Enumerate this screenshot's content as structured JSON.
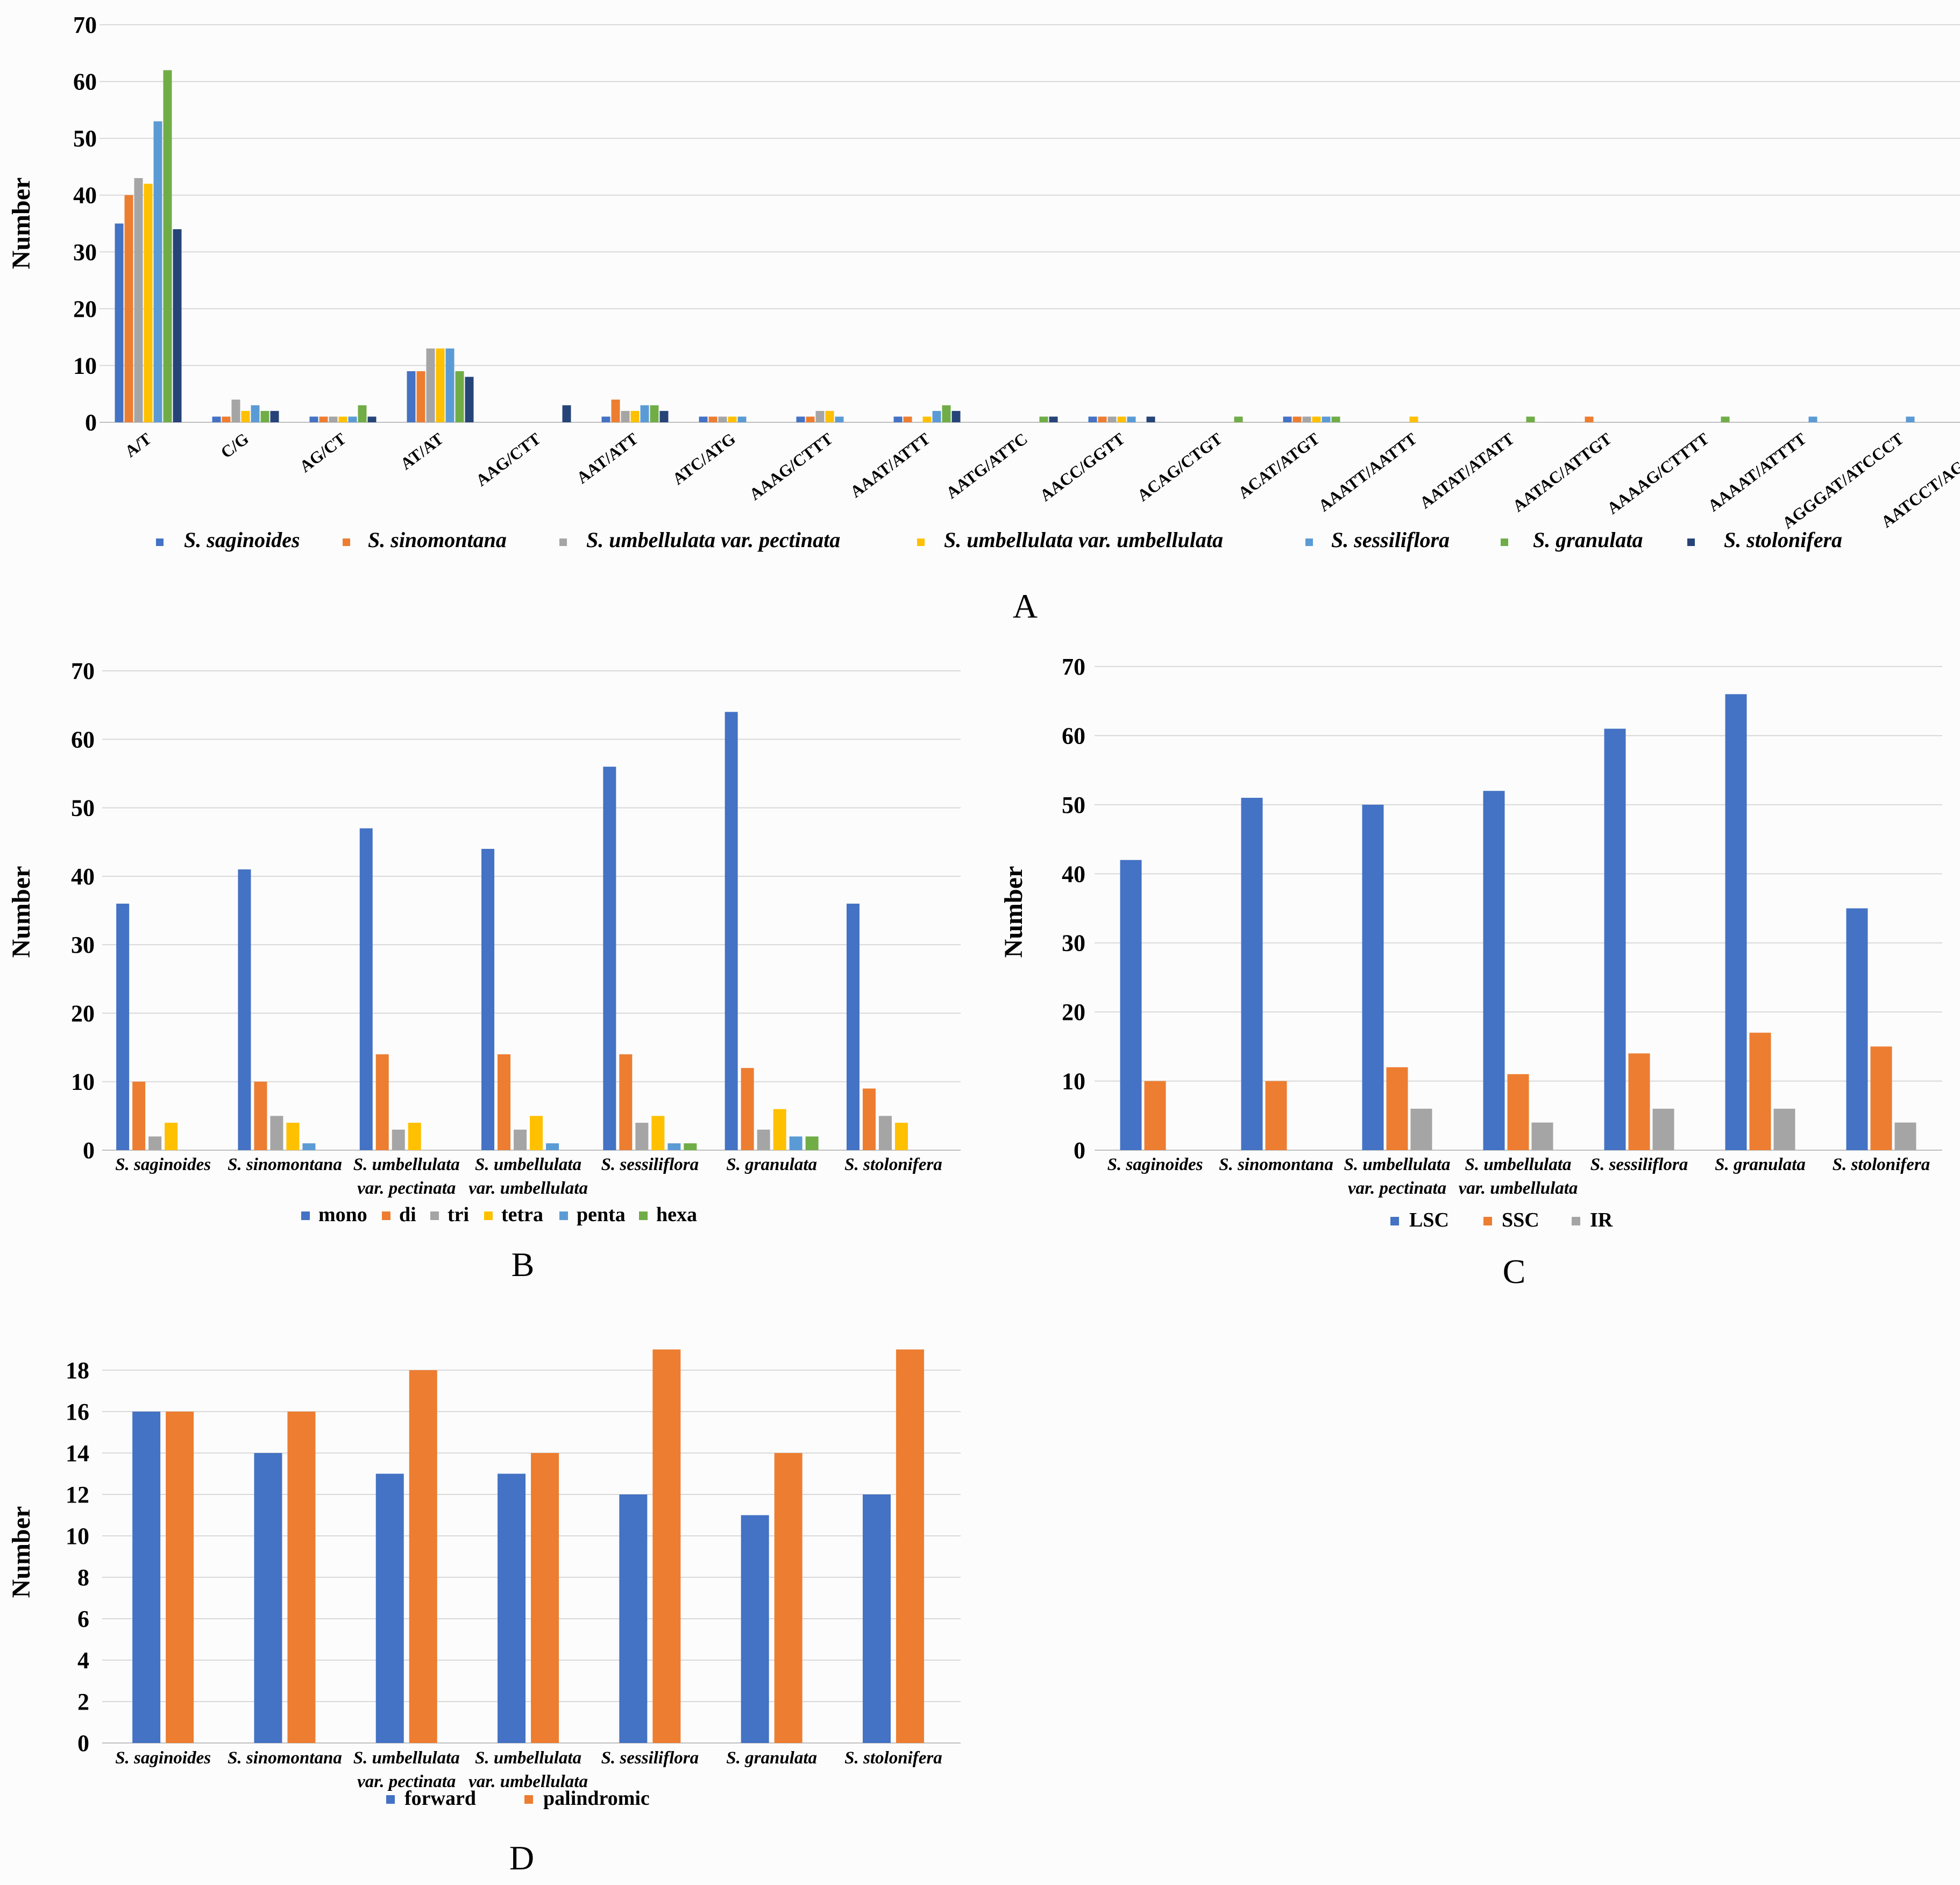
{
  "chart_data": [
    {
      "id": "A",
      "type": "bar",
      "panel_label": "A",
      "ylabel": "Number",
      "ylim": [
        0,
        70
      ],
      "yticks": [
        "0",
        "10",
        "20",
        "30",
        "40",
        "50",
        "60",
        "70"
      ],
      "legend_position": "bottom",
      "categories": [
        "A/T",
        "C/G",
        "AG/CT",
        "AT/AT",
        "AAG/CTT",
        "AAT/ATT",
        "ATC/ATG",
        "AAAG/CTTT",
        "AAAT/ATTT",
        "AATG/ATTC",
        "AACC/GGTT",
        "ACAG/CTGT",
        "ACAT/ATGT",
        "AAATT/AATTT",
        "AATAT/ATATT",
        "AATAC/ATTGT",
        "AAAAG/CTTTT",
        "AAAAT/ATTTT",
        "AGGGAT/ATCCCT",
        "AATCCT/AGGATT"
      ],
      "series": [
        {
          "name": "S. saginoides",
          "color": "#4472c4",
          "values": [
            35,
            1,
            1,
            9,
            0,
            1,
            1,
            1,
            1,
            0,
            1,
            0,
            1,
            0,
            0,
            0,
            0,
            0,
            0,
            0
          ]
        },
        {
          "name": "S. sinomontana",
          "color": "#ed7d31",
          "values": [
            40,
            1,
            1,
            9,
            0,
            4,
            1,
            1,
            1,
            0,
            1,
            0,
            1,
            0,
            0,
            1,
            0,
            0,
            0,
            0
          ]
        },
        {
          "name": "S. umbellulata var. pectinata",
          "color": "#a5a5a5",
          "values": [
            43,
            4,
            1,
            13,
            0,
            2,
            1,
            2,
            0,
            0,
            1,
            0,
            1,
            0,
            0,
            0,
            0,
            0,
            0,
            0
          ]
        },
        {
          "name": "S. umbellulata var. umbellulata",
          "color": "#ffc000",
          "values": [
            42,
            2,
            1,
            13,
            0,
            2,
            1,
            2,
            1,
            0,
            1,
            0,
            1,
            1,
            0,
            0,
            0,
            0,
            0,
            0
          ]
        },
        {
          "name": "S. sessiliflora",
          "color": "#5b9bd5",
          "values": [
            53,
            3,
            1,
            13,
            0,
            3,
            1,
            1,
            2,
            0,
            1,
            0,
            1,
            0,
            0,
            0,
            0,
            1,
            1,
            0
          ]
        },
        {
          "name": "S. granulata",
          "color": "#70ad47",
          "values": [
            62,
            2,
            3,
            9,
            0,
            3,
            0,
            0,
            3,
            1,
            0,
            1,
            1,
            0,
            1,
            0,
            1,
            0,
            0,
            2
          ]
        },
        {
          "name": "S. stolonifera",
          "color": "#264478",
          "values": [
            34,
            2,
            1,
            8,
            3,
            2,
            0,
            0,
            2,
            1,
            1,
            0,
            0,
            0,
            0,
            0,
            0,
            0,
            0,
            0
          ]
        }
      ]
    },
    {
      "id": "B",
      "type": "bar",
      "panel_label": "B",
      "ylabel": "Number",
      "ylim": [
        0,
        70
      ],
      "yticks": [
        "0",
        "10",
        "20",
        "30",
        "40",
        "50",
        "60",
        "70"
      ],
      "legend_position": "bottom",
      "categories": [
        [
          "S. saginoides"
        ],
        [
          "S. sinomontana"
        ],
        [
          "S. umbellulata",
          "var. pectinata"
        ],
        [
          "S. umbellulata",
          "var. umbellulata"
        ],
        [
          "S. sessiliflora"
        ],
        [
          "S. granulata"
        ],
        [
          "S. stolonifera"
        ]
      ],
      "series": [
        {
          "name": "mono",
          "color": "#4472c4",
          "values": [
            36,
            41,
            47,
            44,
            56,
            64,
            36
          ]
        },
        {
          "name": "di",
          "color": "#ed7d31",
          "values": [
            10,
            10,
            14,
            14,
            14,
            12,
            9
          ]
        },
        {
          "name": "tri",
          "color": "#a5a5a5",
          "values": [
            2,
            5,
            3,
            3,
            4,
            3,
            5
          ]
        },
        {
          "name": "tetra",
          "color": "#ffc000",
          "values": [
            4,
            4,
            4,
            5,
            5,
            6,
            4
          ]
        },
        {
          "name": "penta",
          "color": "#5b9bd5",
          "values": [
            0,
            1,
            0,
            1,
            1,
            2,
            0
          ]
        },
        {
          "name": "hexa",
          "color": "#70ad47",
          "values": [
            0,
            0,
            0,
            0,
            1,
            2,
            0
          ]
        }
      ]
    },
    {
      "id": "C",
      "type": "bar",
      "panel_label": "C",
      "ylabel": "Number",
      "ylim": [
        0,
        70
      ],
      "yticks": [
        "0",
        "10",
        "20",
        "30",
        "40",
        "50",
        "60",
        "70"
      ],
      "legend_position": "bottom",
      "categories": [
        [
          "S. saginoides"
        ],
        [
          "S. sinomontana"
        ],
        [
          "S. umbellulata",
          "var. pectinata"
        ],
        [
          "S. umbellulata",
          "var. umbellulata"
        ],
        [
          "S. sessiliflora"
        ],
        [
          "S. granulata"
        ],
        [
          "S. stolonifera"
        ]
      ],
      "series": [
        {
          "name": "LSC",
          "color": "#4472c4",
          "values": [
            42,
            51,
            50,
            52,
            61,
            66,
            35
          ]
        },
        {
          "name": "SSC",
          "color": "#ed7d31",
          "values": [
            10,
            10,
            12,
            11,
            14,
            17,
            15
          ]
        },
        {
          "name": "IR",
          "color": "#a5a5a5",
          "values": [
            0,
            0,
            6,
            4,
            6,
            6,
            4
          ]
        }
      ]
    },
    {
      "id": "D",
      "type": "bar",
      "panel_label": "D",
      "ylabel": "Number",
      "ylim": [
        0,
        20
      ],
      "yticks": [
        "0",
        "2",
        "4",
        "6",
        "8",
        "10",
        "12",
        "14",
        "16",
        "18"
      ],
      "legend_position": "bottom",
      "categories": [
        [
          "S. saginoides"
        ],
        [
          "S. sinomontana"
        ],
        [
          "S. umbellulata",
          "var. pectinata"
        ],
        [
          "S. umbellulata",
          "var. umbellulata"
        ],
        [
          "S. sessiliflora"
        ],
        [
          "S. granulata"
        ],
        [
          "S. stolonifera"
        ]
      ],
      "series": [
        {
          "name": "forward",
          "color": "#4472c4",
          "values": [
            16,
            14,
            13,
            13,
            12,
            11,
            12
          ]
        },
        {
          "name": "palindromic",
          "color": "#ed7d31",
          "values": [
            16,
            16,
            18,
            14,
            19,
            14,
            19
          ]
        }
      ]
    }
  ]
}
